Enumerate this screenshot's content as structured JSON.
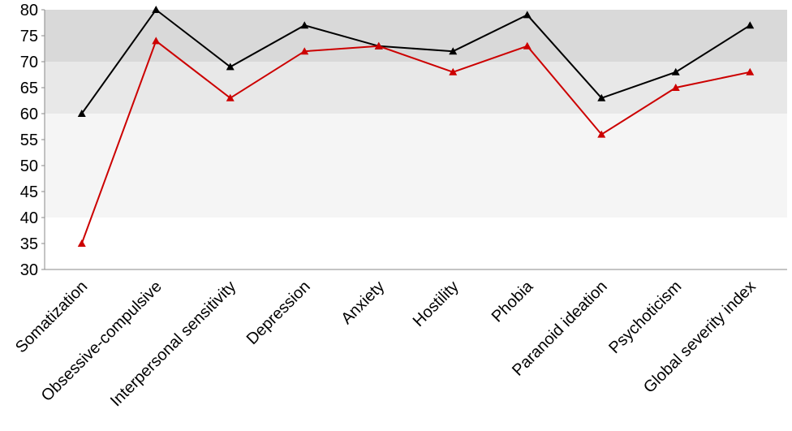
{
  "chart_data": {
    "type": "line",
    "categories": [
      "Somatization",
      "Obsessive-compulsive",
      "Interpersonal sensitivity",
      "Depression",
      "Anxiety",
      "Hostility",
      "Phobia",
      "Paranoid ideation",
      "Psychoticism",
      "Global severity index"
    ],
    "series": [
      {
        "color": "#000000",
        "values": [
          60,
          80,
          69,
          77,
          73,
          72,
          79,
          63,
          68,
          77
        ]
      },
      {
        "color": "#cc0000",
        "values": [
          35,
          74,
          63,
          72,
          73,
          68,
          73,
          56,
          65,
          68
        ]
      }
    ],
    "bands": [
      {
        "from": 70,
        "to": 80,
        "color": "#d9d9d9"
      },
      {
        "from": 60,
        "to": 70,
        "color": "#e8e8e8"
      },
      {
        "from": 40,
        "to": 60,
        "color": "#f5f5f5"
      }
    ],
    "ylim": [
      30,
      80
    ],
    "yticks": [
      30,
      35,
      40,
      45,
      50,
      55,
      60,
      65,
      70,
      75,
      80
    ]
  }
}
